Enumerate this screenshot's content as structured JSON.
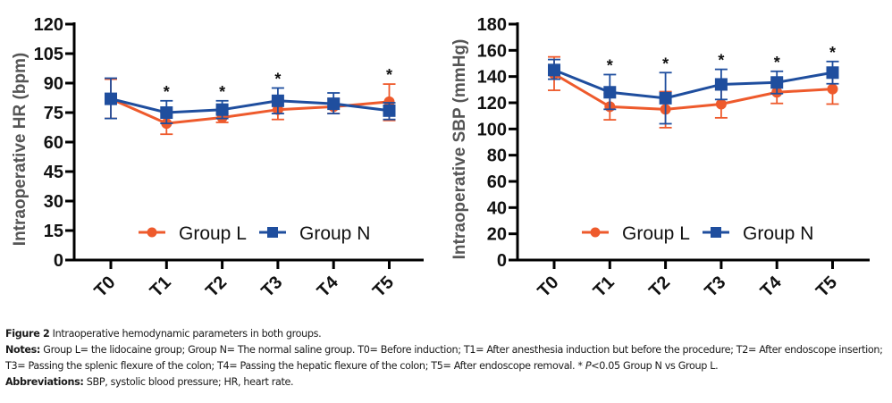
{
  "caption": {
    "figure_label": "Figure 2",
    "figure_title": "Intraoperative hemodynamic parameters in both groups.",
    "notes_label": "Notes:",
    "notes_text_1": "Group L= the lidocaine group; Group N= The normal saline group. T0= Before induction; T1= After anesthesia induction but before the procedure; T2= After endoscope insertion; T3= Passing the splenic flexure of the colon; T4= Passing the hepatic flexure of the colon; T5= After endoscope removal. * ",
    "notes_p_italic": "P",
    "notes_text_2": "<0.05 Group N vs Group L.",
    "abbr_label": "Abbreviations:",
    "abbr_text": "SBP, systolic blood pressure; HR, heart rate."
  },
  "colors": {
    "group_l": "#EE5A2C",
    "group_n": "#1F4E9E",
    "axis": "#000000"
  },
  "chart_data": [
    {
      "type": "line",
      "title": "",
      "xlabel": "",
      "ylabel": "Intraoperative HR (bpm)",
      "categories": [
        "T0",
        "T1",
        "T2",
        "T3",
        "T4",
        "T5"
      ],
      "ylim": [
        0,
        120
      ],
      "yticks": [
        0,
        15,
        30,
        45,
        60,
        75,
        90,
        105,
        120
      ],
      "grid": false,
      "legend": {
        "placement": "bottom-center",
        "entries": [
          "Group L",
          "Group N"
        ]
      },
      "significance": [
        "",
        "*",
        "*",
        "*",
        "",
        "*"
      ],
      "series": [
        {
          "name": "Group L",
          "marker": "circle",
          "values": [
            82,
            69.5,
            72.5,
            76.5,
            78,
            80.5
          ],
          "err_upper": [
            92,
            75,
            74.5,
            81.5,
            82,
            89.5
          ],
          "err_lower": [
            72,
            64,
            70,
            71.5,
            74.5,
            71
          ]
        },
        {
          "name": "Group N",
          "marker": "square",
          "values": [
            82,
            75,
            76.5,
            81,
            79.5,
            76
          ],
          "err_upper": [
            92.5,
            81,
            81,
            87.5,
            85,
            80
          ],
          "err_lower": [
            72,
            69.5,
            72,
            74.5,
            74.5,
            71.5
          ]
        }
      ]
    },
    {
      "type": "line",
      "title": "",
      "xlabel": "",
      "ylabel": "Intraoperative SBP (mmHg)",
      "categories": [
        "T0",
        "T1",
        "T2",
        "T3",
        "T4",
        "T5"
      ],
      "ylim": [
        0,
        180
      ],
      "yticks": [
        0,
        20,
        40,
        60,
        80,
        100,
        120,
        140,
        160,
        180
      ],
      "grid": false,
      "legend": {
        "placement": "bottom-center",
        "entries": [
          "Group L",
          "Group N"
        ]
      },
      "significance": [
        "",
        "*",
        "*",
        "*",
        "*",
        "*"
      ],
      "series": [
        {
          "name": "Group L",
          "marker": "circle",
          "values": [
            142,
            117,
            115,
            119,
            128,
            130.5
          ],
          "err_upper": [
            155,
            127,
            128.5,
            130,
            137,
            142
          ],
          "err_lower": [
            129.5,
            107,
            101,
            108.5,
            119.5,
            119
          ]
        },
        {
          "name": "Group N",
          "marker": "square",
          "values": [
            145,
            128,
            123.5,
            134,
            135.5,
            143
          ],
          "err_upper": [
            153,
            141.5,
            143,
            145.5,
            144,
            151.5
          ],
          "err_lower": [
            138,
            115,
            104,
            122.5,
            127,
            134.5
          ]
        }
      ]
    }
  ]
}
